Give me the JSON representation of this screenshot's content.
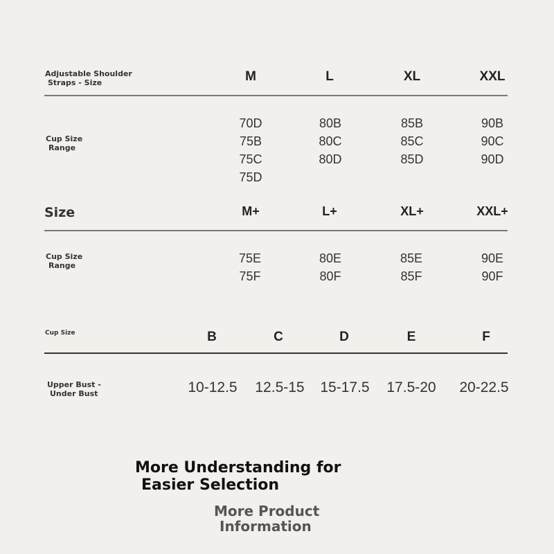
{
  "section1": {
    "label": [
      "Adjustable Shoulder",
      "Straps - Size"
    ],
    "sizes": [
      "M",
      "L",
      "XL",
      "XXL"
    ],
    "row_label": [
      "Cup Size",
      "Range"
    ],
    "cups": [
      [
        "70D",
        "75B",
        "75C",
        "75D"
      ],
      [
        "80B",
        "80C",
        "80D"
      ],
      [
        "85B",
        "85C",
        "85D"
      ],
      [
        "90B",
        "90C",
        "90D"
      ]
    ]
  },
  "section2": {
    "label": "Size",
    "sizes": [
      "M+",
      "L+",
      "XL+",
      "XXL+"
    ],
    "row_label": [
      "Cup Size",
      "Range"
    ],
    "cups": [
      [
        "75E",
        "75F"
      ],
      [
        "80E",
        "80F"
      ],
      [
        "85E",
        "85F"
      ],
      [
        "90E",
        "90F"
      ]
    ]
  },
  "section3": {
    "label": "Cup Size",
    "cups": [
      "B",
      "C",
      "D",
      "E",
      "F"
    ],
    "row_label": [
      "Upper Bust -",
      "Under Bust"
    ],
    "values": [
      "10-12.5",
      "12.5-15",
      "15-17.5",
      "17.5-20",
      "20-22.5"
    ]
  },
  "footer": {
    "headline": [
      "More Understanding for",
      "Easier Selection"
    ],
    "link": [
      "More Product",
      "Information"
    ]
  }
}
